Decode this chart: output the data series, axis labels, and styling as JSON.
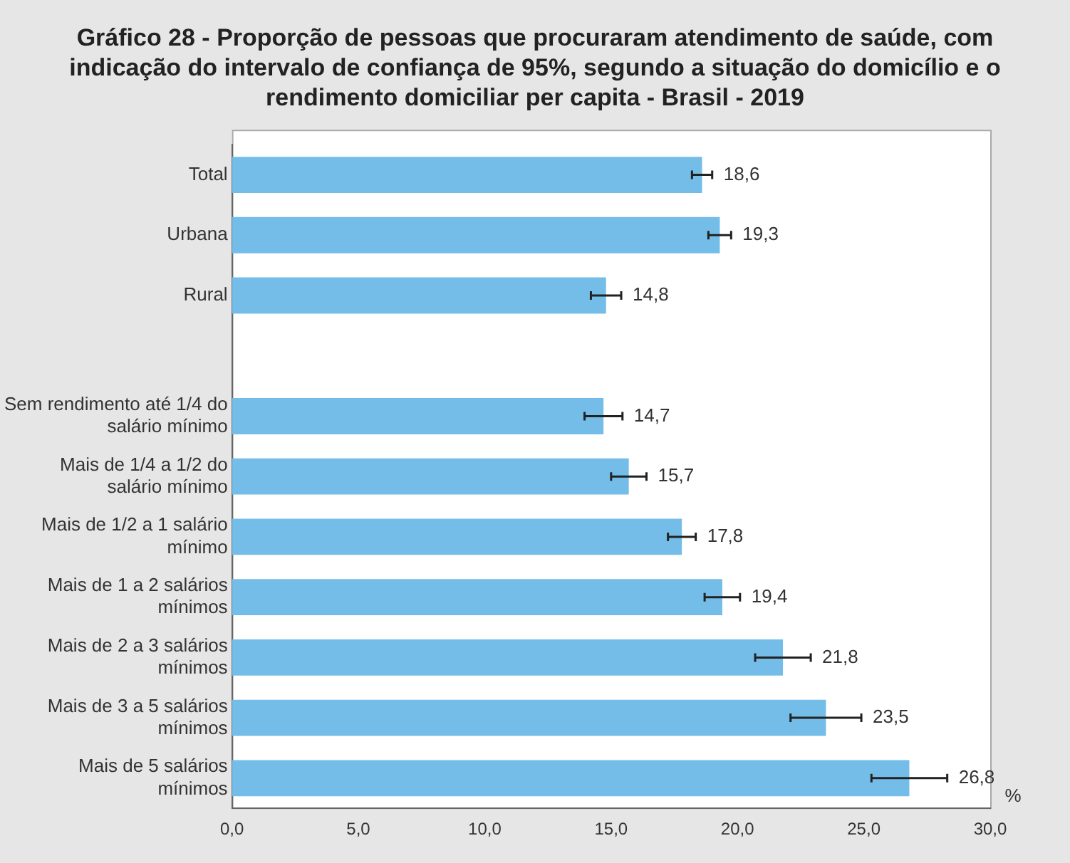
{
  "chart_data": {
    "type": "bar",
    "orientation": "horizontal",
    "title": "Gráfico 28 - Proporção de pessoas que procuraram atendimento de saúde,  com indicação do intervalo de confiança de 95%, segundo a situação do domicílio e o rendimento domiciliar per capita - Brasil - 2019",
    "xlabel": "%",
    "categories": [
      "Total",
      "Urbana",
      "Rural",
      null,
      "Sem rendimento até 1/4 do salário mínimo",
      "Mais de 1/4 a 1/2 do salário mínimo",
      "Mais de 1/2 a 1 salário mínimo",
      "Mais de 1 a 2 salários mínimos",
      "Mais de 2 a 3 salários mínimos",
      "Mais de 3 a 5 salários mínimos",
      "Mais de 5 salários mínimos"
    ],
    "values": [
      18.6,
      19.3,
      14.8,
      null,
      14.7,
      15.7,
      17.8,
      19.4,
      21.8,
      23.5,
      26.8
    ],
    "errors": [
      0.4,
      0.45,
      0.6,
      null,
      0.75,
      0.7,
      0.55,
      0.7,
      1.1,
      1.4,
      1.5
    ],
    "value_labels": [
      "18,6",
      "19,3",
      "14,8",
      null,
      "14,7",
      "15,7",
      "17,8",
      "19,4",
      "21,8",
      "23,5",
      "26,8"
    ],
    "color": "#74bde8",
    "xlim": [
      0,
      30
    ],
    "xticks": [
      {
        "value": 0,
        "label": "0,0"
      },
      {
        "value": 5,
        "label": "5,0"
      },
      {
        "value": 10,
        "label": "10,0"
      },
      {
        "value": 15,
        "label": "15,0"
      },
      {
        "value": 20,
        "label": "20,0"
      },
      {
        "value": 25,
        "label": "25,0"
      },
      {
        "value": 30,
        "label": "30,0"
      }
    ],
    "grid": false,
    "legend": false
  }
}
